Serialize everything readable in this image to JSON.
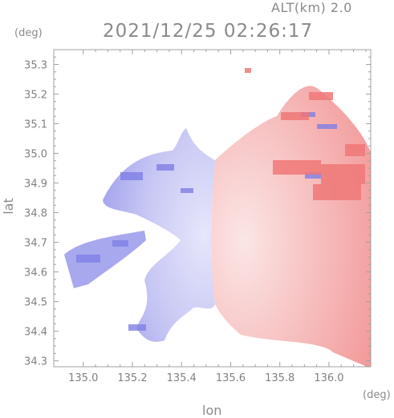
{
  "header": {
    "altitude_label": "ALT(km) 2.0",
    "datetime": "2021/12/25 02:26:17"
  },
  "axes": {
    "y_unit": "(deg)",
    "x_unit": "(deg)",
    "y_label": "lat",
    "x_label": "lon"
  },
  "chart_data": {
    "type": "heatmap",
    "description_kind": "radar doppler velocity map",
    "x_ticks": [
      "135.0",
      "135.2",
      "135.4",
      "135.6",
      "135.8",
      "136.0"
    ],
    "x_tick_values": [
      135.0,
      135.2,
      135.4,
      135.6,
      135.8,
      136.0
    ],
    "y_ticks": [
      "34.3",
      "34.4",
      "34.5",
      "34.6",
      "34.7",
      "34.8",
      "34.9",
      "35.0",
      "35.1",
      "35.2",
      "35.3"
    ],
    "y_tick_values": [
      34.3,
      34.4,
      34.5,
      34.6,
      34.7,
      34.8,
      34.9,
      35.0,
      35.1,
      35.2,
      35.3
    ],
    "xlim": [
      134.88,
      136.17
    ],
    "ylim": [
      34.28,
      35.35
    ],
    "grid": false,
    "colors": {
      "approaching": "#8c8cf0",
      "receding": "#f28c8c",
      "axis": "#a0a0a0"
    }
  }
}
